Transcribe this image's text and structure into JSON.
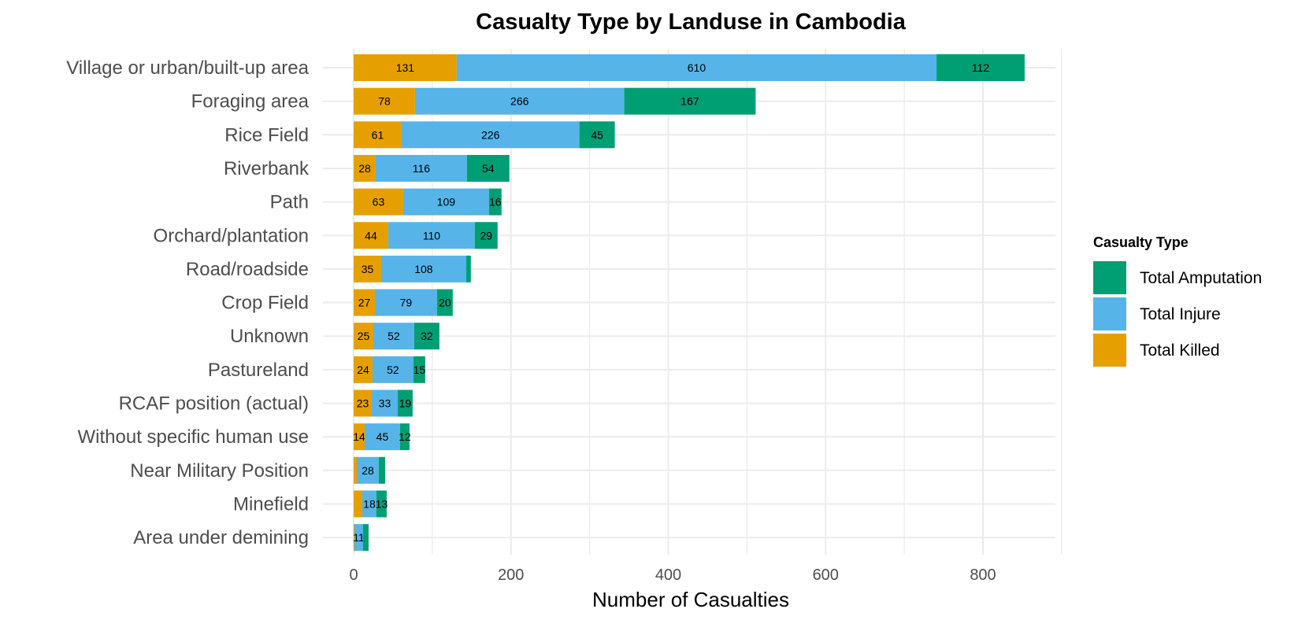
{
  "chart_data": {
    "type": "bar",
    "orientation": "horizontal",
    "stacked": true,
    "title": "Casualty Type by Landuse in Cambodia",
    "xlabel": "Number of Casualties",
    "ylabel": "",
    "xlim": [
      0,
      900
    ],
    "x_ticks": [
      0,
      200,
      400,
      600,
      800
    ],
    "grid": true,
    "legend": {
      "title": "Casualty Type",
      "position": "right"
    },
    "categories": [
      "Village or urban/built-up area",
      "Foraging area",
      "Rice Field",
      "Riverbank",
      "Path",
      "Orchard/plantation",
      "Road/roadside",
      "Crop Field",
      "Unknown",
      "Pastureland",
      "RCAF position (actual)",
      "Without specific human use",
      "Near Military Position",
      "Minefield",
      "Area under demining"
    ],
    "series": [
      {
        "name": "Total Killed",
        "color": "#E69F00",
        "values": [
          131,
          78,
          61,
          28,
          63,
          44,
          35,
          27,
          25,
          24,
          23,
          14,
          4,
          11,
          1
        ],
        "labels": [
          "131",
          "78",
          "61",
          "28",
          "63",
          "44",
          "35",
          "27",
          "25",
          "24",
          "23",
          "14",
          "",
          "",
          ""
        ]
      },
      {
        "name": "Total Injure",
        "color": "#56B4E9",
        "values": [
          610,
          266,
          226,
          116,
          109,
          110,
          108,
          79,
          52,
          52,
          33,
          45,
          28,
          18,
          11
        ],
        "labels": [
          "610",
          "266",
          "226",
          "116",
          "109",
          "110",
          "108",
          "79",
          "52",
          "52",
          "33",
          "45",
          "28",
          "18",
          "11"
        ]
      },
      {
        "name": "Total Amputation",
        "color": "#009E73",
        "values": [
          112,
          167,
          45,
          54,
          16,
          29,
          6,
          20,
          32,
          15,
          19,
          12,
          8,
          13,
          7
        ],
        "labels": [
          "112",
          "167",
          "45",
          "54",
          "16",
          "29",
          "",
          "20",
          "32",
          "15",
          "19",
          "12",
          "",
          "13",
          ""
        ]
      }
    ],
    "legend_order": [
      "Total Amputation",
      "Total Injure",
      "Total Killed"
    ]
  }
}
